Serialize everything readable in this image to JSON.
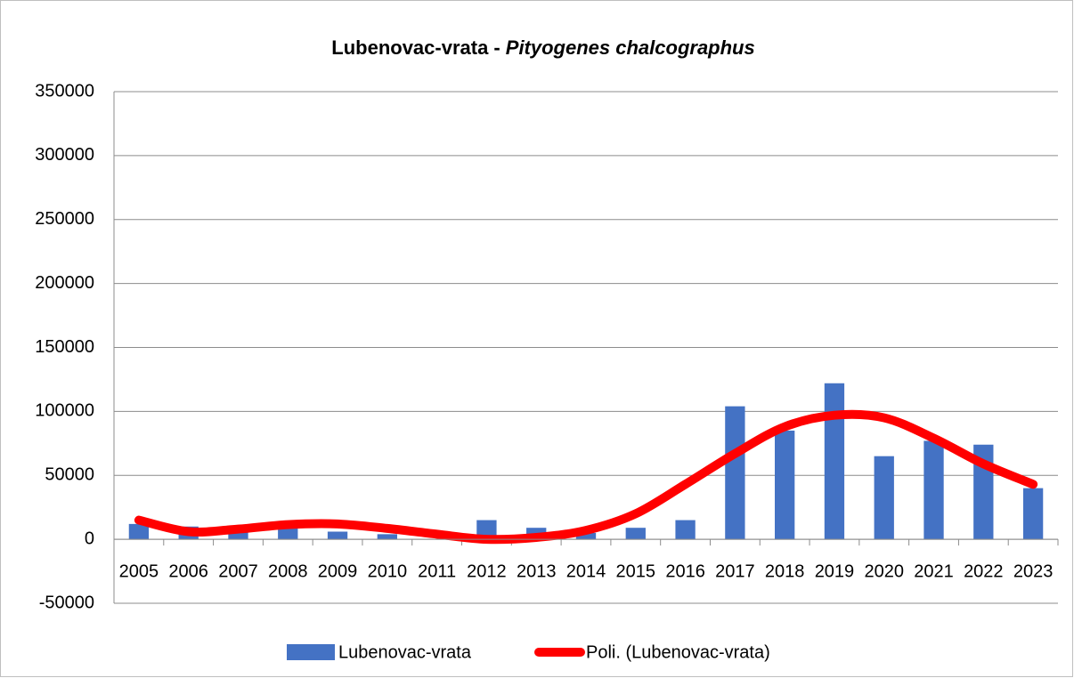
{
  "chart_data": {
    "type": "bar",
    "title": [
      "Lubenovac-vrata -",
      "Pityogenes chalcographus"
    ],
    "categories": [
      "2005",
      "2006",
      "2007",
      "2008",
      "2009",
      "2010",
      "2011",
      "2012",
      "2013",
      "2014",
      "2015",
      "2016",
      "2017",
      "2018",
      "2019",
      "2020",
      "2021",
      "2022",
      "2023"
    ],
    "series": [
      {
        "name": "Lubenovac-vrata",
        "color": "#4472c4",
        "type": "bar",
        "values": [
          12000,
          10000,
          7000,
          10000,
          6000,
          4000,
          0,
          15000,
          9000,
          5000,
          9000,
          15000,
          104000,
          85000,
          122000,
          65000,
          77000,
          74000,
          40000
        ]
      },
      {
        "name": "Poli. (Lubenovac-vrata)",
        "color": "#ff0000",
        "type": "line",
        "values": [
          15000,
          6000,
          8000,
          11500,
          12000,
          8500,
          4000,
          0,
          1500,
          7000,
          20000,
          43000,
          67000,
          88000,
          97000,
          95000,
          79000,
          59000,
          43000
        ]
      }
    ],
    "ylim": [
      -50000,
      350000
    ],
    "yticks": [
      -50000,
      0,
      50000,
      100000,
      150000,
      200000,
      250000,
      300000,
      350000
    ],
    "grid": true,
    "legend": "bottom"
  }
}
